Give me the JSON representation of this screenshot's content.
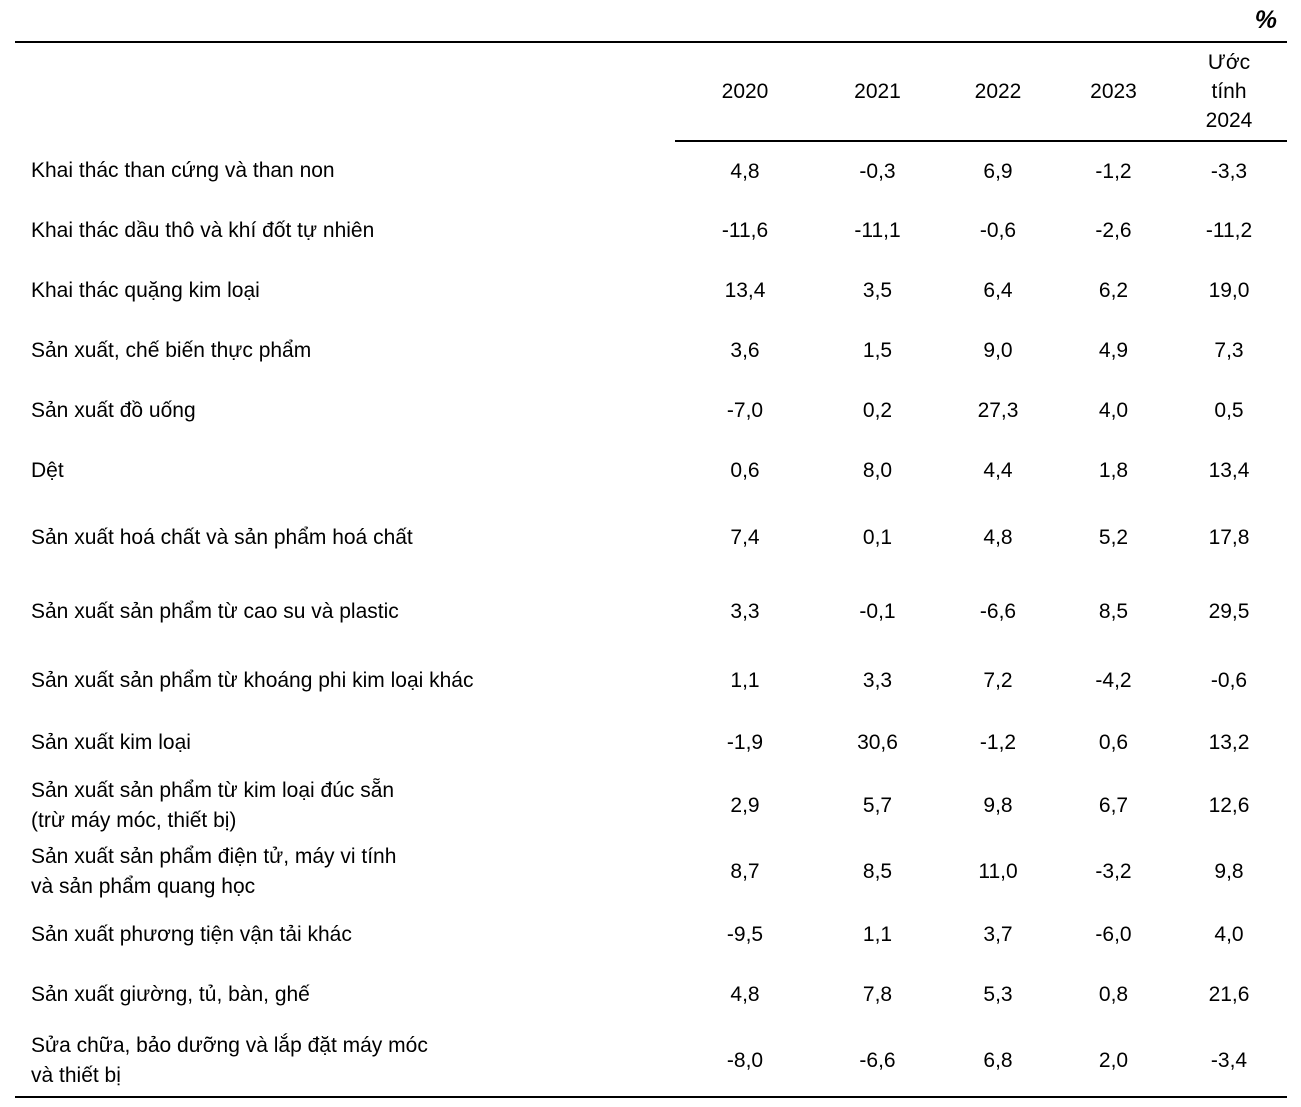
{
  "unit_label": "%",
  "columns": [
    "2020",
    "2021",
    "2022",
    "2023",
    "Ước\ntính\n2024"
  ],
  "rows": [
    {
      "label": "Khai thác than cứng và than non",
      "values": [
        "4,8",
        "-0,3",
        "6,9",
        "-1,2",
        "-3,3"
      ]
    },
    {
      "label": "Khai thác dầu thô và khí đốt tự nhiên",
      "values": [
        "-11,6",
        "-11,1",
        "-0,6",
        "-2,6",
        "-11,2"
      ]
    },
    {
      "label": "Khai thác quặng kim loại",
      "values": [
        "13,4",
        "3,5",
        "6,4",
        "6,2",
        "19,0"
      ]
    },
    {
      "label": "Sản xuất, chế biến thực phẩm",
      "values": [
        "3,6",
        "1,5",
        "9,0",
        "4,9",
        "7,3"
      ]
    },
    {
      "label": "Sản xuất đồ uống",
      "values": [
        "-7,0",
        "0,2",
        "27,3",
        "4,0",
        "0,5"
      ]
    },
    {
      "label": "Dệt",
      "values": [
        "0,6",
        "8,0",
        "4,4",
        "1,8",
        "13,4"
      ]
    },
    {
      "label": "Sản xuất hoá chất và sản phẩm hoá chất",
      "values": [
        "7,4",
        "0,1",
        "4,8",
        "5,2",
        "17,8"
      ]
    },
    {
      "label": "Sản xuất sản phẩm từ cao su và plastic",
      "values": [
        "3,3",
        "-0,1",
        "-6,6",
        "8,5",
        "29,5"
      ]
    },
    {
      "label": "Sản xuất sản phẩm từ khoáng phi kim loại khác",
      "values": [
        "1,1",
        "3,3",
        "7,2",
        "-4,2",
        "-0,6"
      ]
    },
    {
      "label": "Sản xuất kim loại",
      "values": [
        "-1,9",
        "30,6",
        "-1,2",
        "0,6",
        "13,2"
      ]
    },
    {
      "label": "Sản xuất sản phẩm từ kim loại đúc sẵn\n(trừ máy móc, thiết bị)",
      "values": [
        "2,9",
        "5,7",
        "9,8",
        "6,7",
        "12,6"
      ]
    },
    {
      "label": "Sản xuất sản phẩm điện tử, máy vi tính\nvà sản phẩm quang học",
      "values": [
        "8,7",
        "8,5",
        "11,0",
        "-3,2",
        "9,8"
      ]
    },
    {
      "label": "Sản xuất phương tiện vận tải khác",
      "values": [
        "-9,5",
        "1,1",
        "3,7",
        "-6,0",
        "4,0"
      ]
    },
    {
      "label": "Sản xuất giường, tủ, bàn, ghế",
      "values": [
        "4,8",
        "7,8",
        "5,3",
        "0,8",
        "21,6"
      ]
    },
    {
      "label": "Sửa chữa, bảo dưỡng và lắp đặt máy móc\nvà thiết bị",
      "values": [
        "-8,0",
        "-6,6",
        "6,8",
        "2,0",
        "-3,4"
      ]
    }
  ],
  "colors": {
    "text": "#000000",
    "background": "#ffffff",
    "rule": "#000000"
  }
}
